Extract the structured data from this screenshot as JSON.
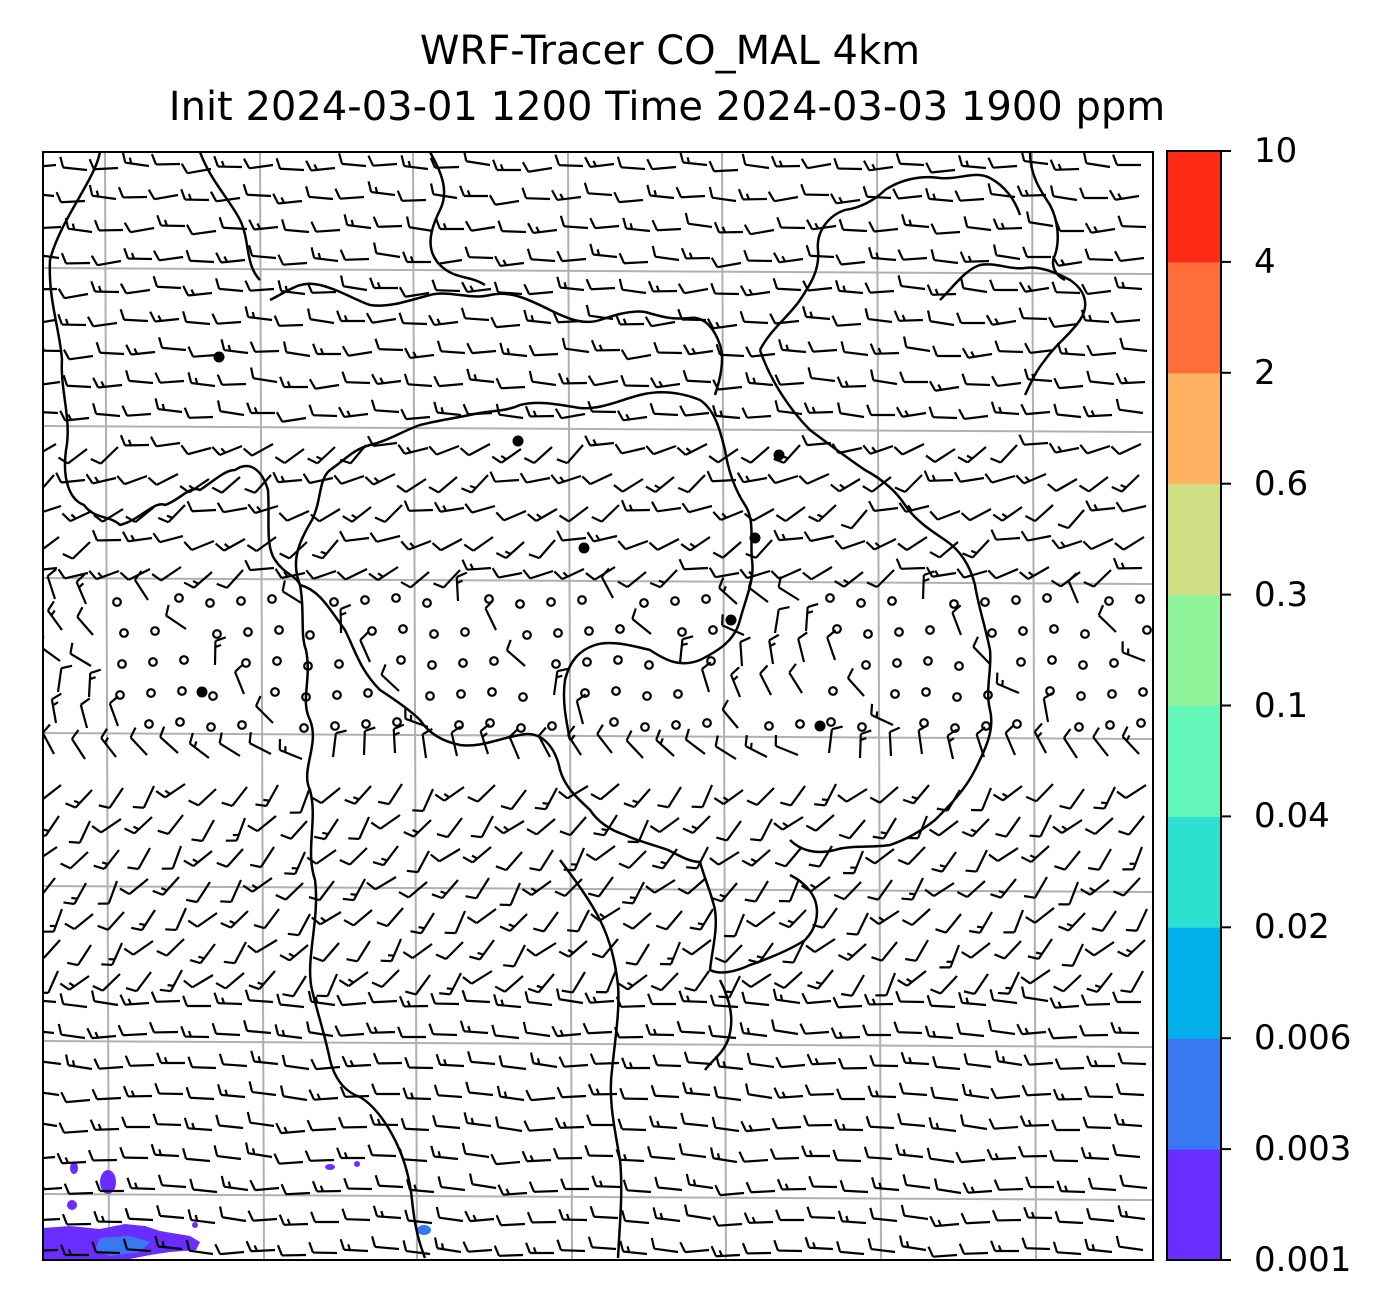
{
  "title": {
    "line1": "WRF-Tracer CO_MAL 4km",
    "line2": "Init 2024-03-01 1200 Time 2024-03-03 1900 ppm"
  },
  "colorbar": {
    "levels": [
      "0.001",
      "0.003",
      "0.006",
      "0.02",
      "0.04",
      "0.1",
      "0.3",
      "0.6",
      "2",
      "4",
      "10"
    ],
    "colors": [
      "#6a2dff",
      "#3a78f2",
      "#00b0ea",
      "#2ee0d0",
      "#62f7b8",
      "#90f39a",
      "#d0e084",
      "#fdb060",
      "#ff6d3a",
      "#ff2a16"
    ]
  },
  "map": {
    "coastline_color": "#000000",
    "gridline_color": "#b0b0b0",
    "barb_color": "#000000",
    "tracer_color_low": "#6a2dff",
    "tracer_color_next": "#3a78f2"
  }
}
